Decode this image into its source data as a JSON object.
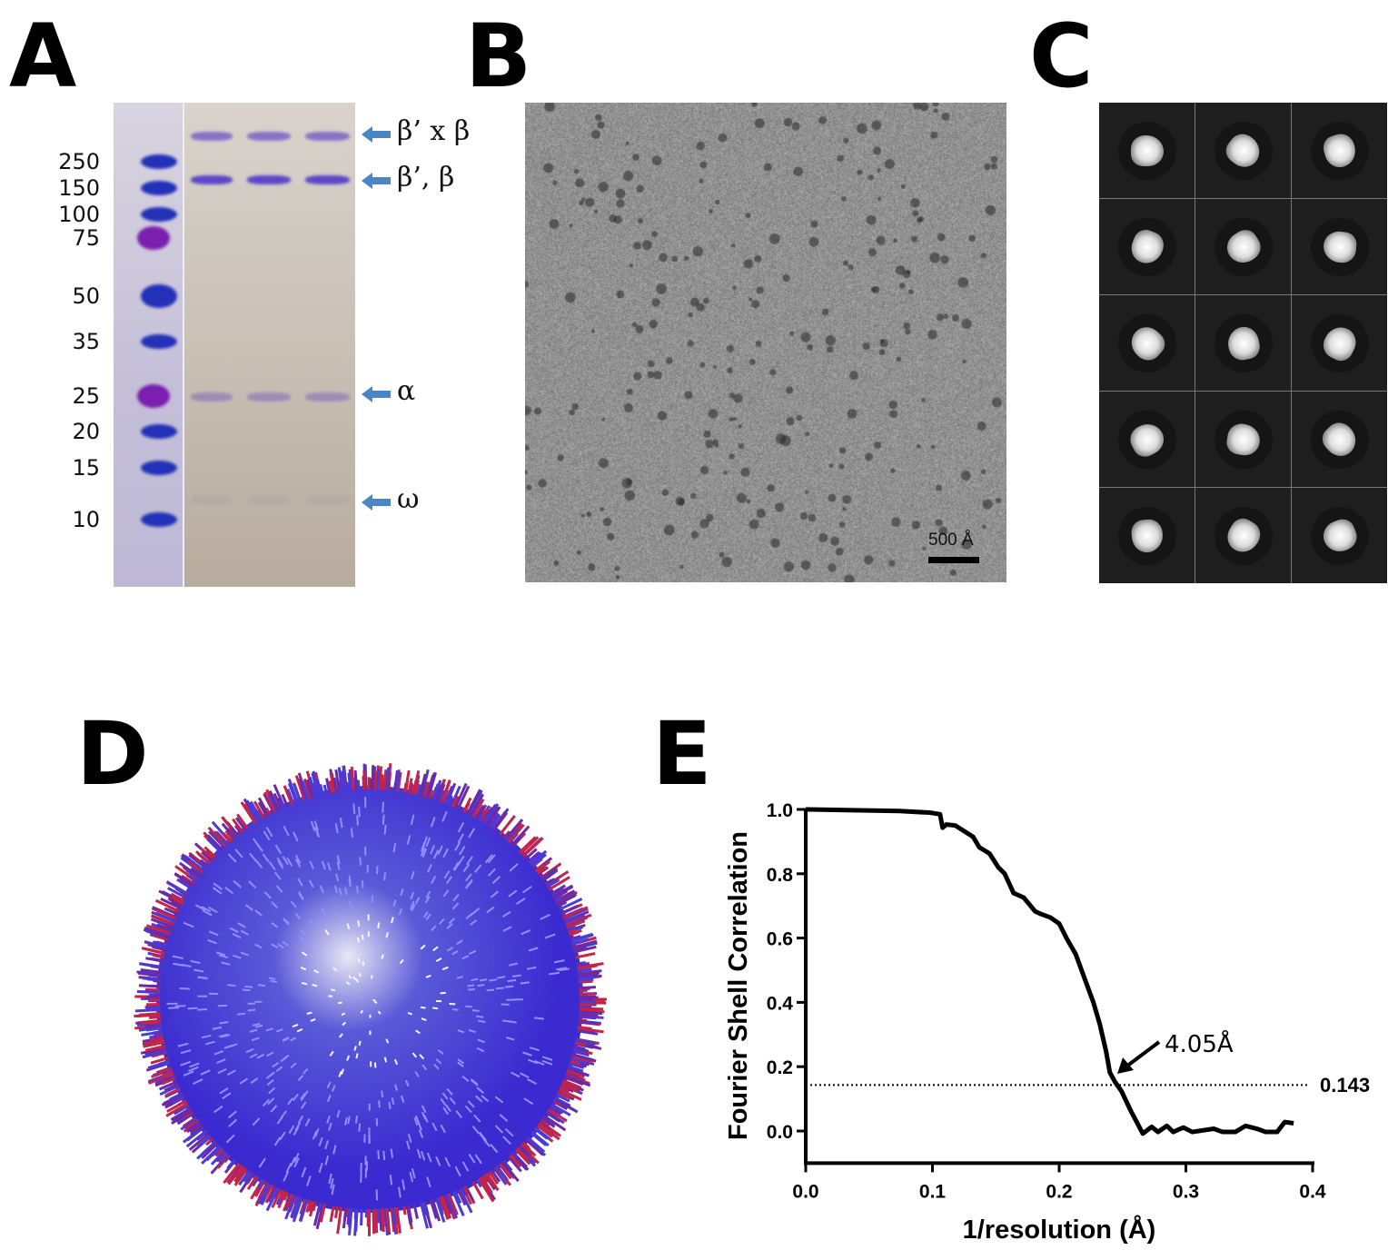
{
  "panels": {
    "a": "A",
    "b": "B",
    "c": "C",
    "d": "D",
    "e": "E"
  },
  "gel": {
    "markers": [
      "250",
      "150",
      "100",
      "75",
      "50",
      "35",
      "25",
      "20",
      "15",
      "10"
    ],
    "band_labels": [
      "β’ x β",
      "β’, β",
      "α",
      "ω"
    ],
    "arrow_color": "#4a86c5"
  },
  "micrograph": {
    "scale_bar_label": "500 Å"
  },
  "class_averages": {
    "rows": 5,
    "cols": 3
  },
  "chart_data": {
    "type": "line",
    "title": "",
    "xlabel": "1/resolution (Å)",
    "ylabel": "Fourier Shell Correlation",
    "xlim": [
      0,
      0.4
    ],
    "ylim": [
      -0.1,
      1.0
    ],
    "xticks": [
      "0.0",
      "0.1",
      "0.2",
      "0.3",
      "0.4"
    ],
    "yticks": [
      "0.0",
      "0.2",
      "0.4",
      "0.6",
      "0.8",
      "1.0"
    ],
    "grid": false,
    "threshold": {
      "value": 0.143,
      "label": "0.143"
    },
    "annotation": "4.05Å",
    "series": [
      {
        "x": [
          0,
          0.074,
          0.098,
          0.106,
          0.108,
          0.111,
          0.118,
          0.132,
          0.137,
          0.145,
          0.152,
          0.157,
          0.164,
          0.172,
          0.181,
          0.186,
          0.193,
          0.2,
          0.206,
          0.213,
          0.22,
          0.227,
          0.232,
          0.237,
          0.24,
          0.244,
          0.249,
          0.257,
          0.266,
          0.273,
          0.278,
          0.285,
          0.29,
          0.298,
          0.305,
          0.322,
          0.329,
          0.339,
          0.347,
          0.356,
          0.363,
          0.372,
          0.378,
          0.385
        ],
        "y": [
          1.0,
          0.995,
          0.99,
          0.985,
          0.943,
          0.953,
          0.95,
          0.915,
          0.882,
          0.863,
          0.82,
          0.8,
          0.74,
          0.726,
          0.683,
          0.674,
          0.664,
          0.645,
          0.598,
          0.55,
          0.475,
          0.4,
          0.333,
          0.248,
          0.182,
          0.153,
          0.125,
          0.059,
          -0.008,
          0.013,
          -0.003,
          0.016,
          -0.003,
          0.011,
          -0.003,
          0.007,
          -0.003,
          -0.003,
          0.016,
          0.007,
          -0.003,
          -0.003,
          0.028,
          0.024
        ]
      }
    ]
  }
}
